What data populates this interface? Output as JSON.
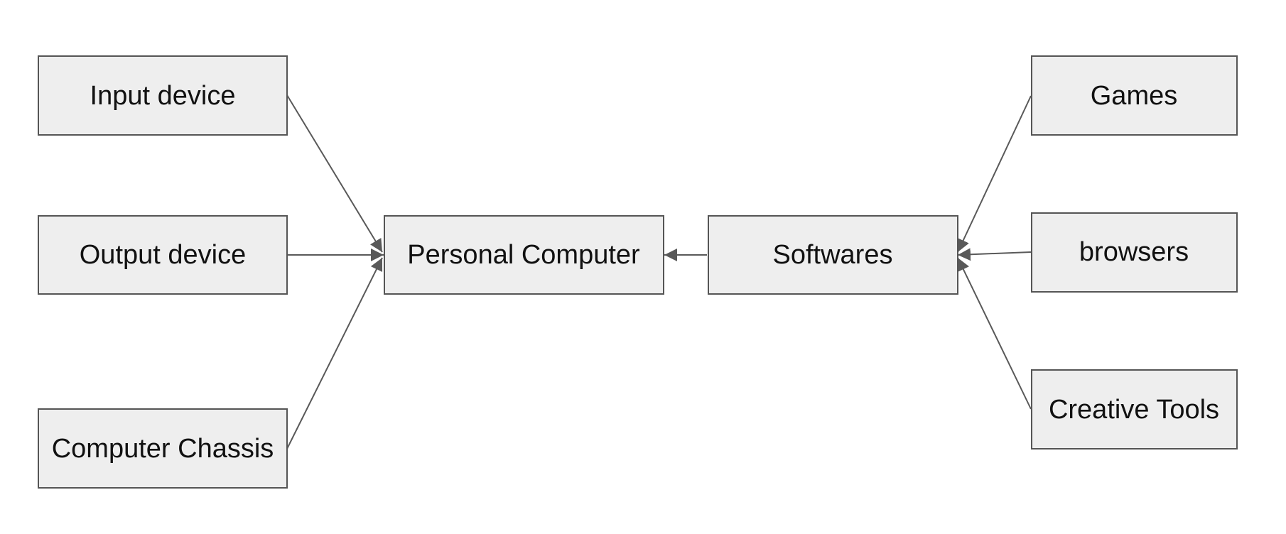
{
  "diagram": {
    "node_fill": "#eeeeee",
    "node_stroke": "#555555",
    "edge_color": "#595959",
    "nodes": {
      "input_device": "Input device",
      "output_device": "Output device",
      "computer_chassis": "Computer Chassis",
      "personal_computer": "Personal Computer",
      "softwares": "Softwares",
      "games": "Games",
      "browsers": "browsers",
      "creative_tools": "Creative Tools"
    },
    "edges": [
      {
        "from": "Input device",
        "to": "Personal Computer"
      },
      {
        "from": "Output device",
        "to": "Personal Computer"
      },
      {
        "from": "Computer Chassis",
        "to": "Personal Computer"
      },
      {
        "from": "Softwares",
        "to": "Personal Computer"
      },
      {
        "from": "Games",
        "to": "Softwares"
      },
      {
        "from": "browsers",
        "to": "Softwares"
      },
      {
        "from": "Creative Tools",
        "to": "Softwares"
      }
    ]
  }
}
